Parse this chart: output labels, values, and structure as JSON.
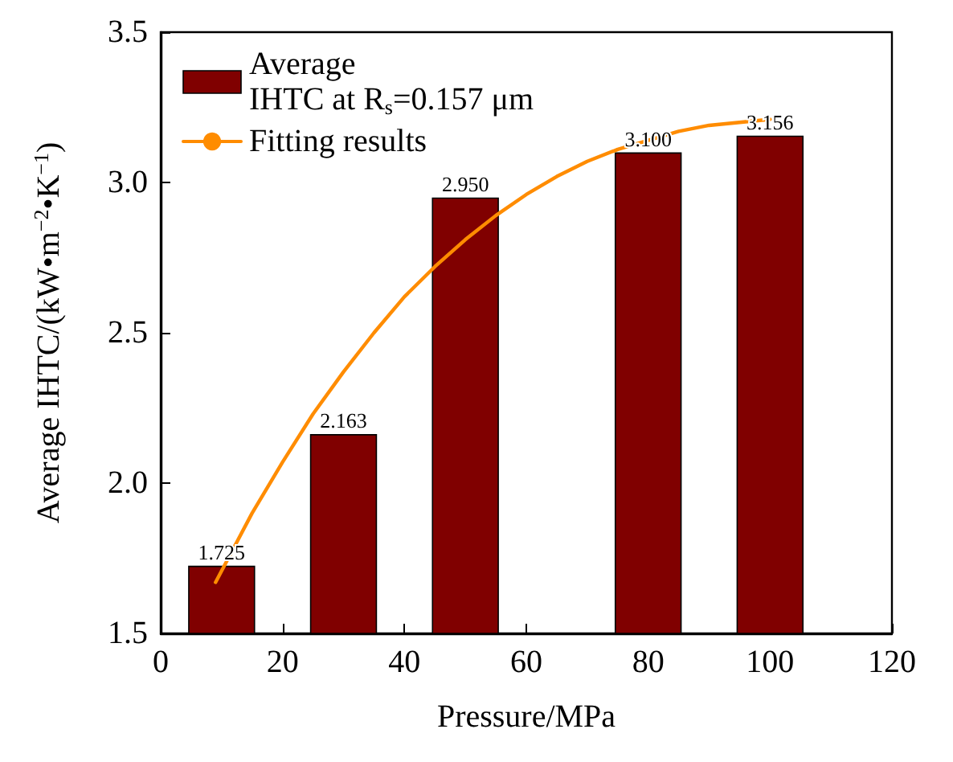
{
  "chart_data": {
    "type": "bar",
    "xlabel": "Pressure/MPa",
    "ylabel": "Average IHTC/(kW•m$^{−2}$•K$^{−1}$)",
    "x": [
      10,
      30,
      50,
      80,
      100
    ],
    "series": [
      {
        "name": "Average\nIHTC at R$_{s}$=0.157 μm",
        "color": "#800000",
        "values": [
          1.725,
          2.163,
          2.95,
          3.1,
          3.156
        ],
        "value_labels": [
          "1.725",
          "2.163",
          "2.950",
          "3.100",
          "3.156"
        ]
      },
      {
        "type": "line",
        "name": "Fitting results",
        "color": "#ff8c00",
        "x": [
          9,
          15,
          20,
          25,
          30,
          35,
          40,
          45,
          50,
          55,
          60,
          65,
          70,
          75,
          80,
          85,
          90,
          95,
          100
        ],
        "values": [
          1.67,
          1.9,
          2.07,
          2.23,
          2.37,
          2.5,
          2.62,
          2.72,
          2.81,
          2.89,
          2.96,
          3.02,
          3.07,
          3.11,
          3.14,
          3.17,
          3.19,
          3.2,
          3.21
        ],
        "marker": "none"
      }
    ],
    "xlim": [
      0,
      120
    ],
    "xticks": [
      0,
      20,
      40,
      60,
      80,
      100,
      120
    ],
    "ylim": [
      1.5,
      3.5
    ],
    "yticks": [
      1.5,
      {
        "value": 2,
        "label": "2.0"
      },
      2.5,
      {
        "value": 3,
        "label": "3.0"
      },
      3.5
    ],
    "grid": false,
    "legend": "top left"
  }
}
